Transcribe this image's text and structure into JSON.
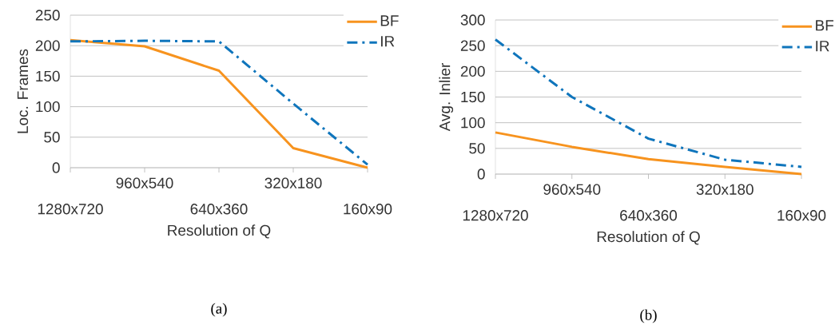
{
  "chart_data": [
    {
      "type": "line",
      "categories": [
        "1280x720",
        "960x540",
        "640x360",
        "320x180",
        "160x90"
      ],
      "xlabel": "Resolution of Q",
      "ylabel": "Loc. Frames",
      "ylim": [
        0,
        250
      ],
      "yticks": [
        0,
        50,
        100,
        150,
        200,
        250
      ],
      "grid": "y",
      "legend": "top right",
      "annotations": [
        "(a)"
      ],
      "series": [
        {
          "name": "BF",
          "color": "#f7931e",
          "line_style": "solid",
          "values": [
            209,
            199,
            159,
            32,
            0
          ]
        },
        {
          "name": "IR",
          "color": "#0f75bc",
          "line_style": "dashed",
          "values": [
            207,
            208,
            207,
            105,
            5
          ]
        }
      ]
    },
    {
      "type": "line",
      "categories": [
        "1280x720",
        "960x540",
        "640x360",
        "320x180",
        "160x90"
      ],
      "xlabel": "Resolution of Q",
      "ylabel": "Avg. Inlier",
      "ylim": [
        0,
        300
      ],
      "yticks": [
        0,
        50,
        100,
        150,
        200,
        250,
        300
      ],
      "grid": "y",
      "legend": "top right",
      "annotations": [
        "(b)"
      ],
      "series": [
        {
          "name": "BF",
          "color": "#f7931e",
          "line_style": "solid",
          "values": [
            81,
            53,
            29,
            14,
            0
          ]
        },
        {
          "name": "IR",
          "color": "#0f75bc",
          "line_style": "dashed",
          "values": [
            262,
            150,
            69,
            28,
            14
          ]
        }
      ]
    }
  ]
}
